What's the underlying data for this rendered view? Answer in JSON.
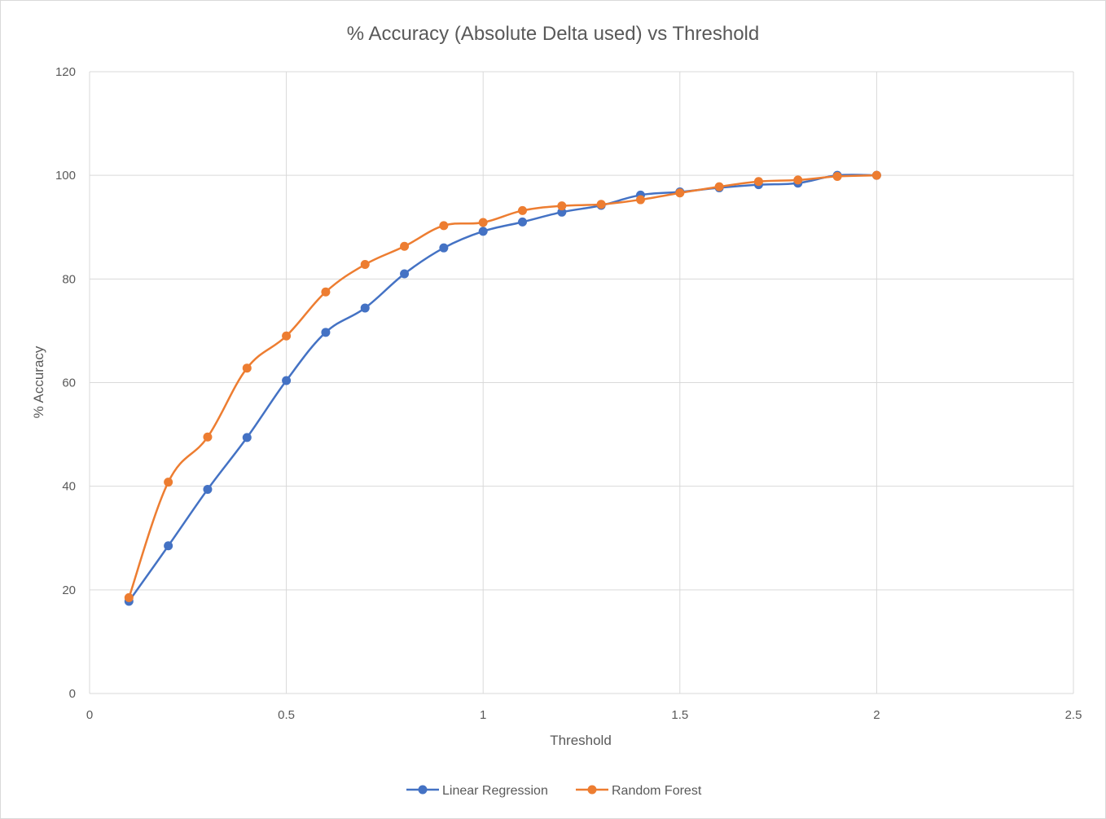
{
  "colors": {
    "series_1": "#4472C4",
    "series_2": "#ED7D31",
    "grid": "#d9d9d9",
    "text": "#595959"
  },
  "chart_data": {
    "type": "scatter",
    "title": "% Accuracy (Absolute Delta used) vs Threshold",
    "xlabel": "Threshold",
    "ylabel": "% Accuracy",
    "xlim": [
      0,
      2.5
    ],
    "ylim": [
      0,
      120
    ],
    "xticks": [
      "0",
      "0.5",
      "1",
      "1.5",
      "2",
      "2.5"
    ],
    "yticks": [
      "0",
      "20",
      "40",
      "60",
      "80",
      "100",
      "120"
    ],
    "x_tick_values": [
      0,
      0.5,
      1,
      1.5,
      2,
      2.5
    ],
    "y_tick_values": [
      0,
      20,
      40,
      60,
      80,
      100,
      120
    ],
    "grid": true,
    "smooth_lines": true,
    "markers": true,
    "legend_position": "bottom",
    "x": [
      0.1,
      0.2,
      0.3,
      0.4,
      0.5,
      0.6,
      0.7,
      0.8,
      0.9,
      1.0,
      1.1,
      1.2,
      1.3,
      1.4,
      1.5,
      1.6,
      1.7,
      1.8,
      1.9,
      2.0
    ],
    "series": [
      {
        "name": "Linear Regression",
        "values": [
          17.8,
          28.5,
          39.4,
          49.4,
          60.4,
          69.7,
          74.4,
          81.0,
          86.0,
          89.2,
          91.0,
          92.9,
          94.2,
          96.2,
          96.8,
          97.6,
          98.2,
          98.5,
          100.0,
          100.0
        ]
      },
      {
        "name": "Random Forest",
        "values": [
          18.5,
          40.8,
          49.5,
          62.8,
          69.0,
          77.5,
          82.8,
          86.3,
          90.3,
          90.9,
          93.2,
          94.1,
          94.4,
          95.3,
          96.6,
          97.8,
          98.8,
          99.1,
          99.8,
          100.0
        ]
      }
    ]
  }
}
